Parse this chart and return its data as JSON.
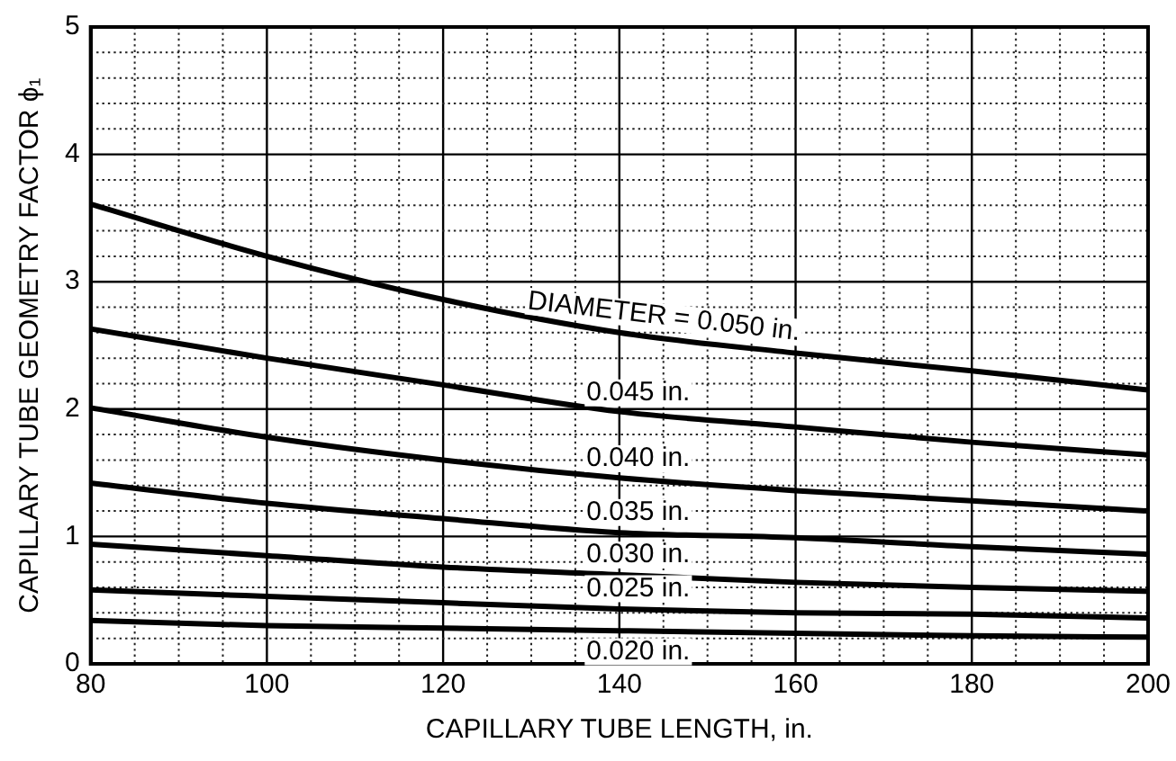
{
  "chart_data": {
    "type": "line",
    "xlabel": "CAPILLARY TUBE LENGTH, in.",
    "ylabel": "CAPILLARY TUBE GEOMETRY FACTOR ϕ₁",
    "x": [
      80,
      100,
      120,
      140,
      160,
      180,
      200
    ],
    "xlim": [
      80,
      200
    ],
    "ylim": [
      0,
      5
    ],
    "xticks": [
      80,
      {
        "value": 85,
        "label": null
      },
      {
        "value": 90,
        "label": null
      },
      {
        "value": 95,
        "label": null
      },
      100,
      {
        "value": 105,
        "label": null
      },
      {
        "value": 110,
        "label": null
      },
      {
        "value": 115,
        "label": null
      },
      120,
      {
        "value": 125,
        "label": null
      },
      {
        "value": 130,
        "label": null
      },
      {
        "value": 135,
        "label": null
      },
      140,
      {
        "value": 145,
        "label": null
      },
      {
        "value": 150,
        "label": null
      },
      {
        "value": 155,
        "label": null
      },
      160,
      {
        "value": 165,
        "label": null
      },
      {
        "value": 170,
        "label": null
      },
      {
        "value": 175,
        "label": null
      },
      180,
      {
        "value": 185,
        "label": null
      },
      {
        "value": 190,
        "label": null
      },
      {
        "value": 195,
        "label": null
      },
      200
    ],
    "yticks": [
      0,
      {
        "value": 0.2,
        "label": null
      },
      {
        "value": 0.4,
        "label": null
      },
      {
        "value": 0.6,
        "label": null
      },
      {
        "value": 0.8,
        "label": null
      },
      1,
      {
        "value": 1.2,
        "label": null
      },
      {
        "value": 1.4,
        "label": null
      },
      {
        "value": 1.6,
        "label": null
      },
      {
        "value": 1.8,
        "label": null
      },
      2,
      {
        "value": 2.2,
        "label": null
      },
      {
        "value": 2.4,
        "label": null
      },
      {
        "value": 2.6,
        "label": null
      },
      {
        "value": 2.8,
        "label": null
      },
      3,
      {
        "value": 3.2,
        "label": null
      },
      {
        "value": 3.4,
        "label": null
      },
      {
        "value": 3.6,
        "label": null
      },
      {
        "value": 3.8,
        "label": null
      },
      4,
      {
        "value": 4.2,
        "label": null
      },
      {
        "value": 4.4,
        "label": null
      },
      {
        "value": 4.6,
        "label": null
      },
      {
        "value": 4.8,
        "label": null
      },
      5
    ],
    "grid": true,
    "legend": false,
    "marker": "none",
    "line_style": "solid",
    "series": [
      {
        "name": "DIAMETER = 0.050 in.",
        "color": "#000000",
        "values": [
          3.61,
          3.2,
          2.86,
          2.6,
          2.44,
          2.3,
          2.15
        ]
      },
      {
        "name": "0.045 in.",
        "color": "#000000",
        "values": [
          2.63,
          2.4,
          2.19,
          1.98,
          1.86,
          1.74,
          1.64
        ]
      },
      {
        "name": "0.040 in.",
        "color": "#000000",
        "values": [
          2.01,
          1.78,
          1.6,
          1.46,
          1.36,
          1.28,
          1.2
        ]
      },
      {
        "name": "0.035 in.",
        "color": "#000000",
        "values": [
          1.42,
          1.26,
          1.14,
          1.03,
          0.99,
          0.92,
          0.86
        ]
      },
      {
        "name": "0.030 in.",
        "color": "#000000",
        "values": [
          0.94,
          0.85,
          0.76,
          0.7,
          0.64,
          0.6,
          0.57
        ]
      },
      {
        "name": "0.025 in.",
        "color": "#000000",
        "values": [
          0.58,
          0.53,
          0.48,
          0.43,
          0.4,
          0.39,
          0.36
        ]
      },
      {
        "name": "0.020 in.",
        "color": "#000000",
        "values": [
          0.34,
          0.3,
          0.28,
          0.26,
          0.24,
          0.22,
          0.21
        ]
      }
    ]
  }
}
